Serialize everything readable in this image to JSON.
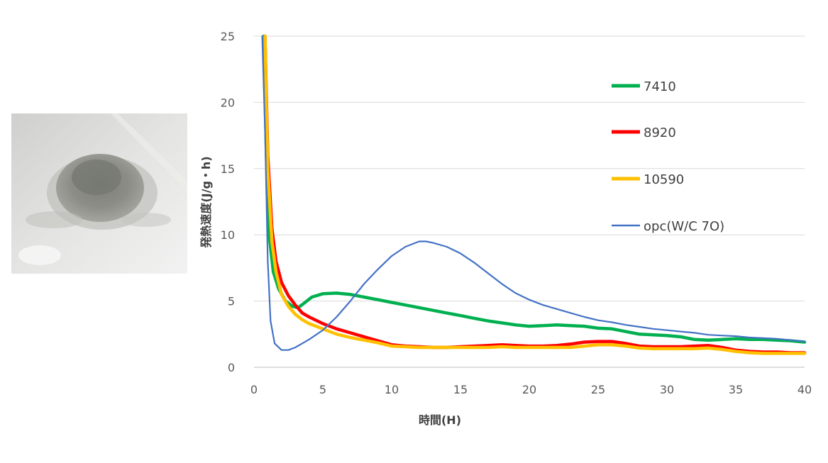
{
  "chart_data": {
    "type": "line",
    "xlabel": "時間(H)",
    "ylabel": "発熱速度(J/g・h)",
    "xlim": [
      0,
      40
    ],
    "ylim": [
      0,
      25
    ],
    "xticks": [
      "0",
      "5",
      "10",
      "15",
      "20",
      "25",
      "30",
      "35",
      "40"
    ],
    "yticks": [
      "0",
      "5",
      "10",
      "15",
      "20",
      "25"
    ],
    "grid": "horizontal",
    "legend_position": "right",
    "series": [
      {
        "name": "7410",
        "color": "#00B050",
        "points": [
          [
            0.7,
            25
          ],
          [
            0.9,
            16
          ],
          [
            1.1,
            10
          ],
          [
            1.4,
            7.2
          ],
          [
            1.8,
            5.9
          ],
          [
            2.3,
            5.0
          ],
          [
            2.8,
            4.6
          ],
          [
            3.2,
            4.5
          ],
          [
            3.6,
            4.8
          ],
          [
            4.2,
            5.3
          ],
          [
            5,
            5.55
          ],
          [
            6,
            5.6
          ],
          [
            7,
            5.5
          ],
          [
            8,
            5.3
          ],
          [
            9,
            5.1
          ],
          [
            10,
            4.9
          ],
          [
            11,
            4.7
          ],
          [
            12,
            4.5
          ],
          [
            13,
            4.3
          ],
          [
            14,
            4.1
          ],
          [
            15,
            3.9
          ],
          [
            16,
            3.7
          ],
          [
            17,
            3.5
          ],
          [
            18,
            3.35
          ],
          [
            19,
            3.2
          ],
          [
            20,
            3.1
          ],
          [
            21,
            3.15
          ],
          [
            22,
            3.2
          ],
          [
            23,
            3.15
          ],
          [
            24,
            3.1
          ],
          [
            25,
            2.95
          ],
          [
            26,
            2.9
          ],
          [
            27,
            2.7
          ],
          [
            28,
            2.5
          ],
          [
            29,
            2.45
          ],
          [
            30,
            2.4
          ],
          [
            31,
            2.3
          ],
          [
            32,
            2.1
          ],
          [
            33,
            2.05
          ],
          [
            34,
            2.1
          ],
          [
            35,
            2.15
          ],
          [
            36,
            2.1
          ],
          [
            37,
            2.1
          ],
          [
            38,
            2.05
          ],
          [
            39,
            2.0
          ],
          [
            40,
            1.9
          ]
        ]
      },
      {
        "name": "8920",
        "color": "#FF0000",
        "points": [
          [
            0.8,
            25
          ],
          [
            1.0,
            16
          ],
          [
            1.3,
            10.5
          ],
          [
            1.6,
            8
          ],
          [
            2.0,
            6.4
          ],
          [
            2.5,
            5.4
          ],
          [
            3,
            4.7
          ],
          [
            3.5,
            4.1
          ],
          [
            4,
            3.8
          ],
          [
            5,
            3.3
          ],
          [
            6,
            2.9
          ],
          [
            7,
            2.6
          ],
          [
            8,
            2.3
          ],
          [
            9,
            2.0
          ],
          [
            10,
            1.7
          ],
          [
            11,
            1.6
          ],
          [
            12,
            1.55
          ],
          [
            13,
            1.5
          ],
          [
            14,
            1.5
          ],
          [
            15,
            1.55
          ],
          [
            16,
            1.6
          ],
          [
            17,
            1.65
          ],
          [
            18,
            1.7
          ],
          [
            19,
            1.65
          ],
          [
            20,
            1.6
          ],
          [
            21,
            1.6
          ],
          [
            22,
            1.65
          ],
          [
            23,
            1.75
          ],
          [
            24,
            1.9
          ],
          [
            25,
            1.95
          ],
          [
            26,
            1.95
          ],
          [
            27,
            1.8
          ],
          [
            28,
            1.6
          ],
          [
            29,
            1.55
          ],
          [
            30,
            1.55
          ],
          [
            31,
            1.55
          ],
          [
            32,
            1.6
          ],
          [
            33,
            1.65
          ],
          [
            34,
            1.5
          ],
          [
            35,
            1.3
          ],
          [
            36,
            1.2
          ],
          [
            37,
            1.15
          ],
          [
            38,
            1.15
          ],
          [
            39,
            1.1
          ],
          [
            40,
            1.1
          ]
        ]
      },
      {
        "name": "10590",
        "color": "#FFC000",
        "points": [
          [
            0.8,
            25
          ],
          [
            1.0,
            15
          ],
          [
            1.3,
            9.5
          ],
          [
            1.6,
            7.2
          ],
          [
            2.0,
            5.5
          ],
          [
            2.5,
            4.6
          ],
          [
            3,
            4.0
          ],
          [
            3.5,
            3.6
          ],
          [
            4,
            3.3
          ],
          [
            5,
            2.9
          ],
          [
            6,
            2.5
          ],
          [
            7,
            2.25
          ],
          [
            8,
            2.05
          ],
          [
            9,
            1.85
          ],
          [
            10,
            1.6
          ],
          [
            11,
            1.55
          ],
          [
            12,
            1.5
          ],
          [
            13,
            1.5
          ],
          [
            14,
            1.5
          ],
          [
            15,
            1.5
          ],
          [
            16,
            1.5
          ],
          [
            17,
            1.5
          ],
          [
            18,
            1.55
          ],
          [
            19,
            1.5
          ],
          [
            20,
            1.5
          ],
          [
            21,
            1.5
          ],
          [
            22,
            1.5
          ],
          [
            23,
            1.5
          ],
          [
            24,
            1.6
          ],
          [
            25,
            1.7
          ],
          [
            26,
            1.7
          ],
          [
            27,
            1.6
          ],
          [
            28,
            1.45
          ],
          [
            29,
            1.4
          ],
          [
            30,
            1.4
          ],
          [
            31,
            1.4
          ],
          [
            32,
            1.4
          ],
          [
            33,
            1.45
          ],
          [
            34,
            1.35
          ],
          [
            35,
            1.2
          ],
          [
            36,
            1.1
          ],
          [
            37,
            1.05
          ],
          [
            38,
            1.05
          ],
          [
            39,
            1.05
          ],
          [
            40,
            1.05
          ]
        ]
      },
      {
        "name": "opc(W/C 7O)",
        "color": "#4472C4",
        "points": [
          [
            0.6,
            25
          ],
          [
            0.8,
            18
          ],
          [
            1.0,
            8
          ],
          [
            1.2,
            3.5
          ],
          [
            1.5,
            1.8
          ],
          [
            2,
            1.3
          ],
          [
            2.5,
            1.3
          ],
          [
            3,
            1.5
          ],
          [
            3.5,
            1.8
          ],
          [
            4,
            2.1
          ],
          [
            5,
            2.8
          ],
          [
            6,
            3.8
          ],
          [
            7,
            5.0
          ],
          [
            8,
            6.3
          ],
          [
            9,
            7.4
          ],
          [
            10,
            8.4
          ],
          [
            11,
            9.1
          ],
          [
            12,
            9.5
          ],
          [
            12.5,
            9.5
          ],
          [
            13,
            9.4
          ],
          [
            14,
            9.1
          ],
          [
            15,
            8.6
          ],
          [
            16,
            7.9
          ],
          [
            17,
            7.1
          ],
          [
            18,
            6.3
          ],
          [
            19,
            5.6
          ],
          [
            20,
            5.1
          ],
          [
            21,
            4.7
          ],
          [
            22,
            4.4
          ],
          [
            23,
            4.1
          ],
          [
            24,
            3.8
          ],
          [
            25,
            3.55
          ],
          [
            26,
            3.4
          ],
          [
            27,
            3.2
          ],
          [
            28,
            3.05
          ],
          [
            29,
            2.9
          ],
          [
            30,
            2.8
          ],
          [
            31,
            2.7
          ],
          [
            32,
            2.6
          ],
          [
            33,
            2.45
          ],
          [
            34,
            2.4
          ],
          [
            35,
            2.35
          ],
          [
            36,
            2.25
          ],
          [
            37,
            2.2
          ],
          [
            38,
            2.15
          ],
          [
            39,
            2.05
          ],
          [
            40,
            1.95
          ]
        ]
      }
    ]
  }
}
